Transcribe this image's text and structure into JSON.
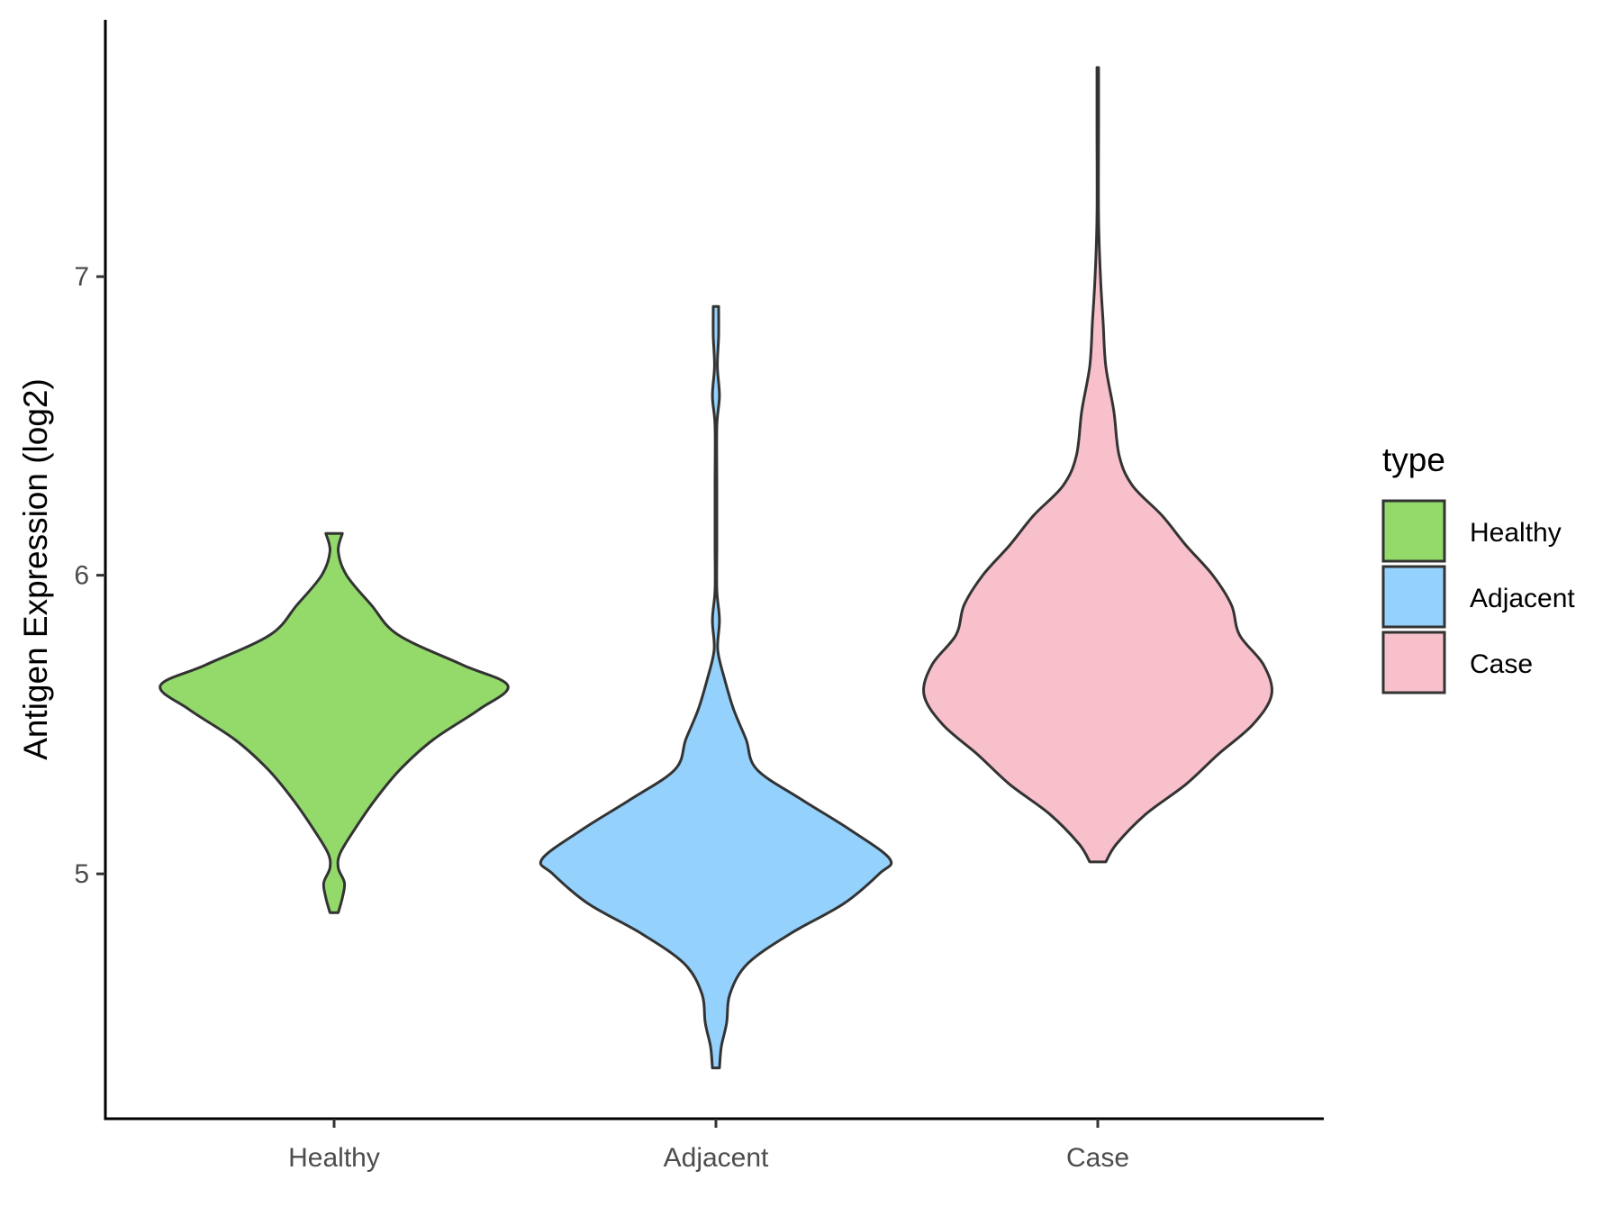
{
  "chart_data": {
    "type": "violin",
    "ylabel": "Antigen Expression (log2)",
    "xlabel": "",
    "categories": [
      "Healthy",
      "Adjacent",
      "Case"
    ],
    "yticks": [
      5,
      6,
      7
    ],
    "ylim": [
      4.18,
      7.86
    ],
    "legend": {
      "title": "type",
      "position": "right",
      "items": [
        {
          "label": "Healthy",
          "color": "#93DA6A"
        },
        {
          "label": "Adjacent",
          "color": "#94D1FD"
        },
        {
          "label": "Case",
          "color": "#F7C0CB"
        }
      ]
    },
    "grid": false,
    "series": [
      {
        "category": "Healthy",
        "color": "#93DA6A",
        "min": 4.87,
        "max": 6.14,
        "density": [
          [
            4.87,
            0.02
          ],
          [
            4.92,
            0.04
          ],
          [
            4.97,
            0.05
          ],
          [
            5.02,
            0.02
          ],
          [
            5.07,
            0.03
          ],
          [
            5.15,
            0.1
          ],
          [
            5.25,
            0.2
          ],
          [
            5.35,
            0.32
          ],
          [
            5.45,
            0.48
          ],
          [
            5.55,
            0.7
          ],
          [
            5.63,
            0.84
          ],
          [
            5.7,
            0.62
          ],
          [
            5.8,
            0.31
          ],
          [
            5.9,
            0.18
          ],
          [
            6.0,
            0.06
          ],
          [
            6.08,
            0.02
          ],
          [
            6.14,
            0.04
          ]
        ]
      },
      {
        "category": "Adjacent",
        "color": "#94D1FD",
        "min": 4.35,
        "max": 6.9,
        "density": [
          [
            4.35,
            0.02
          ],
          [
            4.42,
            0.03
          ],
          [
            4.5,
            0.06
          ],
          [
            4.6,
            0.08
          ],
          [
            4.7,
            0.18
          ],
          [
            4.8,
            0.42
          ],
          [
            4.9,
            0.72
          ],
          [
            5.0,
            0.92
          ],
          [
            5.05,
            0.98
          ],
          [
            5.15,
            0.75
          ],
          [
            5.25,
            0.48
          ],
          [
            5.35,
            0.23
          ],
          [
            5.45,
            0.17
          ],
          [
            5.55,
            0.1
          ],
          [
            5.65,
            0.05
          ],
          [
            5.75,
            0.01
          ],
          [
            5.85,
            0.02
          ],
          [
            5.95,
            0.005
          ],
          [
            6.1,
            0.005
          ],
          [
            6.3,
            0.005
          ],
          [
            6.5,
            0.005
          ],
          [
            6.6,
            0.02
          ],
          [
            6.7,
            0.008
          ],
          [
            6.8,
            0.015
          ],
          [
            6.9,
            0.015
          ]
        ]
      },
      {
        "category": "Case",
        "color": "#F7C0CB",
        "min": 5.04,
        "max": 7.7,
        "density": [
          [
            5.04,
            0.03
          ],
          [
            5.1,
            0.07
          ],
          [
            5.2,
            0.18
          ],
          [
            5.3,
            0.33
          ],
          [
            5.4,
            0.45
          ],
          [
            5.5,
            0.58
          ],
          [
            5.6,
            0.65
          ],
          [
            5.7,
            0.62
          ],
          [
            5.8,
            0.53
          ],
          [
            5.9,
            0.5
          ],
          [
            6.0,
            0.43
          ],
          [
            6.1,
            0.33
          ],
          [
            6.2,
            0.24
          ],
          [
            6.3,
            0.13
          ],
          [
            6.4,
            0.08
          ],
          [
            6.55,
            0.06
          ],
          [
            6.7,
            0.03
          ],
          [
            6.85,
            0.02
          ],
          [
            7.0,
            0.01
          ],
          [
            7.2,
            0.003
          ],
          [
            7.5,
            0.003
          ],
          [
            7.7,
            0.003
          ]
        ]
      }
    ]
  }
}
